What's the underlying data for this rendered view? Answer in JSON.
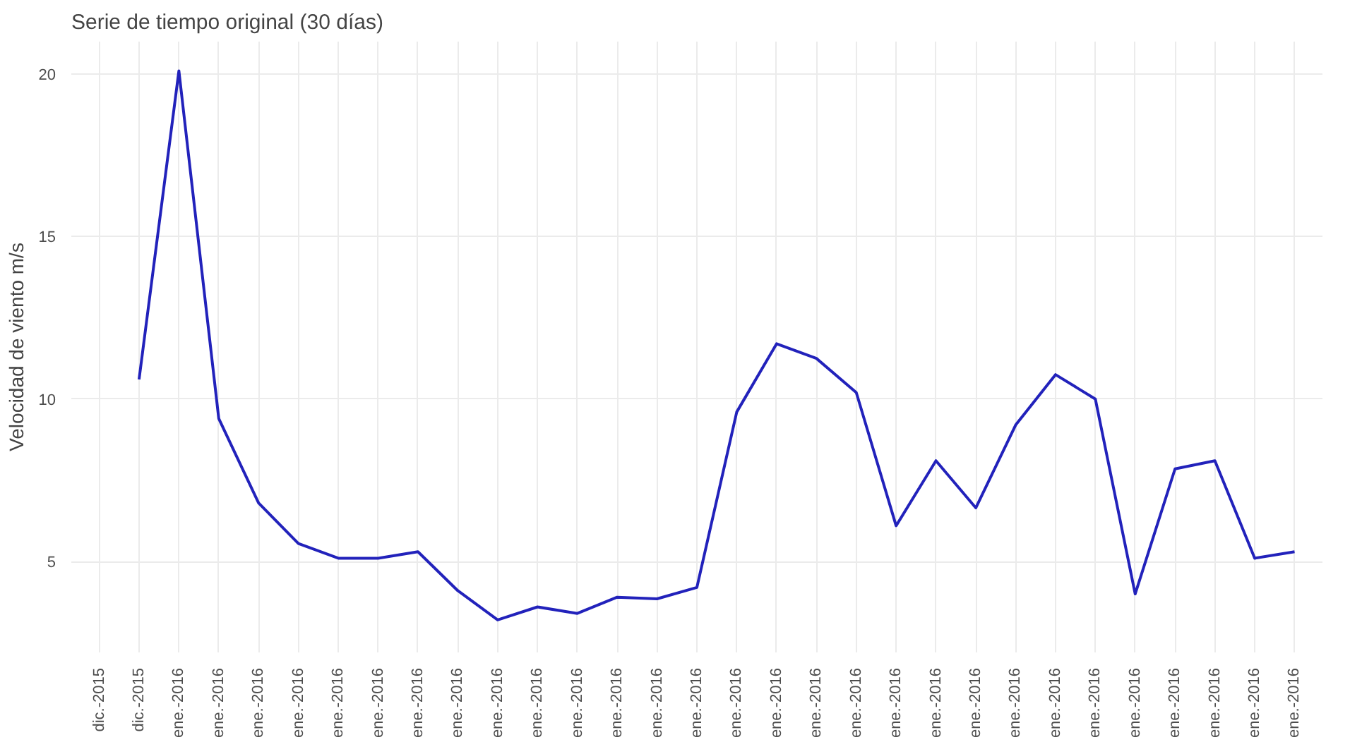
{
  "chart_data": {
    "type": "line",
    "title": "Serie de tiempo original (30 días)",
    "ylabel": "Velocidad de viento m/s",
    "categories": [
      "dic.-2015",
      "dic.-2015",
      "ene.-2016",
      "ene.-2016",
      "ene.-2016",
      "ene.-2016",
      "ene.-2016",
      "ene.-2016",
      "ene.-2016",
      "ene.-2016",
      "ene.-2016",
      "ene.-2016",
      "ene.-2016",
      "ene.-2016",
      "ene.-2016",
      "ene.-2016",
      "ene.-2016",
      "ene.-2016",
      "ene.-2016",
      "ene.-2016",
      "ene.-2016",
      "ene.-2016",
      "ene.-2016",
      "ene.-2016",
      "ene.-2016",
      "ene.-2016",
      "ene.-2016",
      "ene.-2016",
      "ene.-2016",
      "ene.-2016",
      "ene.-2016"
    ],
    "series": [
      {
        "color": "#2222bb",
        "values": [
          null,
          10.6,
          20.1,
          9.4,
          6.8,
          5.55,
          5.1,
          5.1,
          5.3,
          4.1,
          3.2,
          3.6,
          3.4,
          3.9,
          3.85,
          4.2,
          9.6,
          11.7,
          11.25,
          10.2,
          6.1,
          8.1,
          6.65,
          9.2,
          10.75,
          10.0,
          4.0,
          7.85,
          8.1,
          5.1,
          5.3
        ]
      }
    ],
    "ylim": [
      2.2,
      21.0
    ],
    "yticks": [
      5,
      10,
      15,
      20
    ],
    "grid": true,
    "line_style": "solid"
  }
}
